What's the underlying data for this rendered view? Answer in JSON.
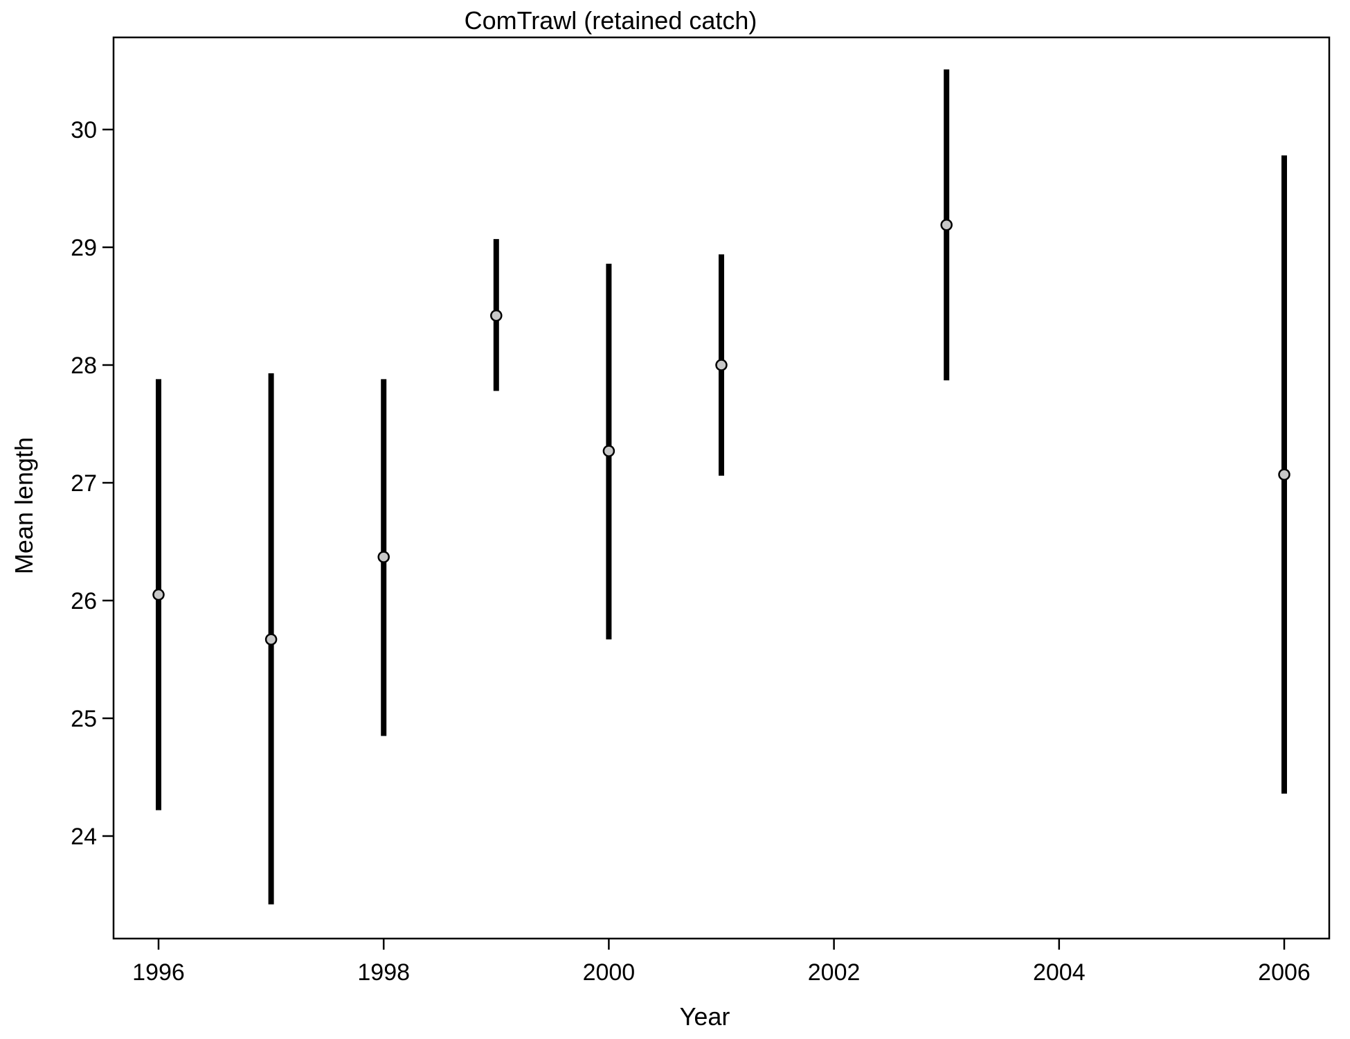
{
  "chart_data": {
    "type": "scatter",
    "title": "ComTrawl (retained catch)",
    "xlabel": "Year",
    "ylabel": "Mean length",
    "xlim": [
      1995.8,
      2006.2
    ],
    "ylim": [
      23.1,
      30.8
    ],
    "x_ticks": [
      1996,
      1998,
      2000,
      2002,
      2004,
      2006
    ],
    "y_ticks": [
      24,
      25,
      26,
      27,
      28,
      29,
      30
    ],
    "grid": false,
    "legend": "none",
    "points": [
      {
        "x": 1996,
        "y": 26.05,
        "lower": 24.22,
        "upper": 27.88
      },
      {
        "x": 1997,
        "y": 25.67,
        "lower": 23.42,
        "upper": 27.93
      },
      {
        "x": 1998,
        "y": 26.37,
        "lower": 24.85,
        "upper": 27.88
      },
      {
        "x": 1999,
        "y": 28.42,
        "lower": 27.78,
        "upper": 29.07
      },
      {
        "x": 2000,
        "y": 27.27,
        "lower": 25.67,
        "upper": 28.86
      },
      {
        "x": 2001,
        "y": 28.0,
        "lower": 27.06,
        "upper": 28.94
      },
      {
        "x": 2003,
        "y": 29.19,
        "lower": 27.87,
        "upper": 30.51
      },
      {
        "x": 2006,
        "y": 27.07,
        "lower": 24.36,
        "upper": 29.78
      }
    ],
    "colors": {
      "interval": "#000000",
      "point_fill": "#c8c8c8",
      "point_stroke": "#000000",
      "axis": "#000000"
    }
  }
}
